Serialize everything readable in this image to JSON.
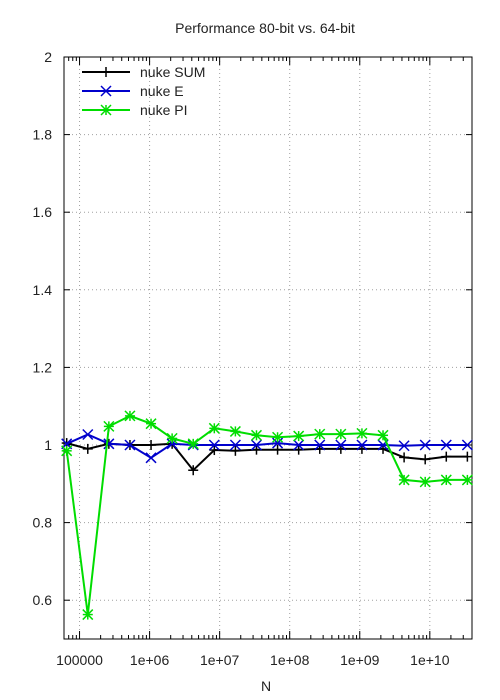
{
  "chart_data": {
    "type": "line",
    "title": "Performance 80-bit vs. 64-bit",
    "xlabel": "N",
    "ylabel": "",
    "x_scale": "log",
    "xlim": [
      60000,
      40000000000
    ],
    "ylim": [
      0.5,
      2.0
    ],
    "grid": true,
    "legend_position": "top-left",
    "x_ticks": [
      {
        "value": 100000,
        "label": "100000"
      },
      {
        "value": 1000000,
        "label": "1e+06"
      },
      {
        "value": 10000000,
        "label": "1e+07"
      },
      {
        "value": 100000000,
        "label": "1e+08"
      },
      {
        "value": 1000000000,
        "label": "1e+09"
      },
      {
        "value": 10000000000,
        "label": "1e+10"
      }
    ],
    "y_ticks": [
      {
        "value": 0.6,
        "label": "0.6"
      },
      {
        "value": 0.8,
        "label": "0.8"
      },
      {
        "value": 1.0,
        "label": "1"
      },
      {
        "value": 1.2,
        "label": "1.2"
      },
      {
        "value": 1.4,
        "label": "1.4"
      },
      {
        "value": 1.6,
        "label": "1.6"
      },
      {
        "value": 1.8,
        "label": "1.8"
      },
      {
        "value": 2.0,
        "label": "2"
      }
    ],
    "x": [
      65536,
      131072,
      262144,
      524288,
      1048576,
      2097152,
      4194304,
      8388608,
      16777216,
      33554432,
      67108864,
      134217728,
      268435456,
      536870912,
      1073741824,
      2147483648,
      4294967296,
      8589934592,
      17179869184,
      34359738368
    ],
    "series": [
      {
        "name": "nuke SUM",
        "color": "#000000",
        "marker": "plus",
        "values": [
          1.005,
          0.99,
          1.003,
          1.0,
          1.0,
          1.003,
          0.935,
          0.987,
          0.985,
          0.988,
          0.988,
          0.988,
          0.99,
          0.99,
          0.99,
          0.99,
          0.968,
          0.963,
          0.97,
          0.97
        ]
      },
      {
        "name": "nuke E",
        "color": "#0000cc",
        "marker": "cross",
        "values": [
          1.003,
          1.027,
          1.003,
          1.0,
          0.967,
          1.003,
          1.0,
          1.0,
          1.0,
          1.0,
          1.005,
          1.0,
          1.0,
          1.0,
          1.0,
          1.0,
          0.998,
          1.0,
          1.0,
          1.0
        ]
      },
      {
        "name": "nuke PI",
        "color": "#00dd00",
        "marker": "boxcross",
        "values": [
          0.985,
          0.563,
          1.048,
          1.075,
          1.055,
          1.017,
          1.003,
          1.043,
          1.035,
          1.025,
          1.02,
          1.023,
          1.028,
          1.028,
          1.03,
          1.025,
          0.91,
          0.905,
          0.91,
          0.91
        ]
      }
    ]
  }
}
